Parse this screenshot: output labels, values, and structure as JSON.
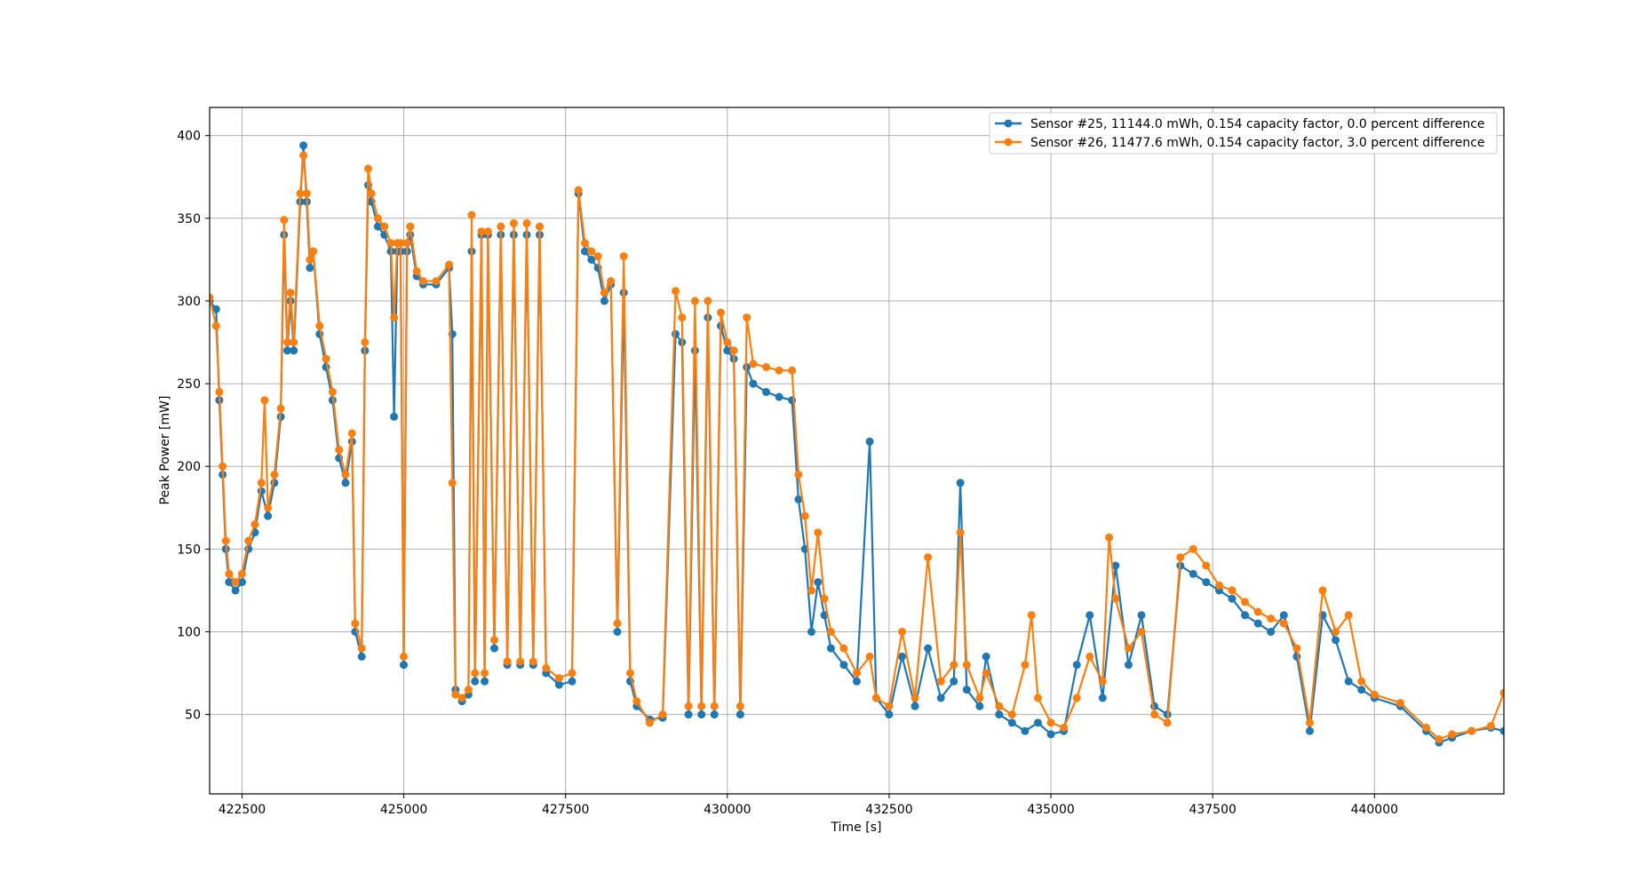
{
  "chart_data": {
    "type": "line",
    "title": "",
    "xlabel": "Time [s]",
    "ylabel": "Peak Power [mW]",
    "xlim": [
      422000,
      442000
    ],
    "ylim": [
      2,
      417
    ],
    "x_ticks": [
      422500,
      425000,
      427500,
      430000,
      432500,
      435000,
      437500,
      440000
    ],
    "y_ticks": [
      50,
      100,
      150,
      200,
      250,
      300,
      350,
      400
    ],
    "grid": true,
    "legend_position": "top-right",
    "markers": "circle",
    "series": [
      {
        "name": "Sensor #25, 11144.0 mWh,  0.154 capacity factor, 0.0 percent difference",
        "color": "#1f77b4",
        "points": [
          [
            422000,
            300
          ],
          [
            422100,
            295
          ],
          [
            422150,
            240
          ],
          [
            422200,
            195
          ],
          [
            422250,
            150
          ],
          [
            422300,
            130
          ],
          [
            422400,
            125
          ],
          [
            422500,
            130
          ],
          [
            422600,
            150
          ],
          [
            422700,
            160
          ],
          [
            422800,
            185
          ],
          [
            422900,
            170
          ],
          [
            423000,
            190
          ],
          [
            423100,
            230
          ],
          [
            423150,
            340
          ],
          [
            423200,
            270
          ],
          [
            423250,
            300
          ],
          [
            423300,
            270
          ],
          [
            423400,
            360
          ],
          [
            423450,
            394
          ],
          [
            423500,
            360
          ],
          [
            423550,
            320
          ],
          [
            423600,
            330
          ],
          [
            423700,
            280
          ],
          [
            423800,
            260
          ],
          [
            423900,
            240
          ],
          [
            424000,
            205
          ],
          [
            424100,
            190
          ],
          [
            424200,
            215
          ],
          [
            424250,
            100
          ],
          [
            424350,
            85
          ],
          [
            424400,
            270
          ],
          [
            424450,
            370
          ],
          [
            424500,
            360
          ],
          [
            424600,
            345
          ],
          [
            424700,
            340
          ],
          [
            424800,
            330
          ],
          [
            424850,
            230
          ],
          [
            424900,
            330
          ],
          [
            424950,
            330
          ],
          [
            425000,
            80
          ],
          [
            425050,
            330
          ],
          [
            425100,
            340
          ],
          [
            425200,
            315
          ],
          [
            425300,
            310
          ],
          [
            425500,
            310
          ],
          [
            425700,
            320
          ],
          [
            425750,
            280
          ],
          [
            425800,
            65
          ],
          [
            425900,
            58
          ],
          [
            426000,
            62
          ],
          [
            426050,
            330
          ],
          [
            426100,
            70
          ],
          [
            426200,
            340
          ],
          [
            426250,
            70
          ],
          [
            426300,
            340
          ],
          [
            426400,
            90
          ],
          [
            426500,
            340
          ],
          [
            426600,
            80
          ],
          [
            426700,
            340
          ],
          [
            426800,
            80
          ],
          [
            426900,
            340
          ],
          [
            427000,
            80
          ],
          [
            427100,
            340
          ],
          [
            427200,
            75
          ],
          [
            427400,
            68
          ],
          [
            427600,
            70
          ],
          [
            427700,
            365
          ],
          [
            427800,
            330
          ],
          [
            427900,
            325
          ],
          [
            428000,
            320
          ],
          [
            428100,
            300
          ],
          [
            428200,
            310
          ],
          [
            428300,
            100
          ],
          [
            428400,
            305
          ],
          [
            428500,
            70
          ],
          [
            428600,
            55
          ],
          [
            428800,
            47
          ],
          [
            429000,
            48
          ],
          [
            429200,
            280
          ],
          [
            429300,
            275
          ],
          [
            429400,
            50
          ],
          [
            429500,
            270
          ],
          [
            429600,
            50
          ],
          [
            429700,
            290
          ],
          [
            429800,
            50
          ],
          [
            429900,
            285
          ],
          [
            430000,
            270
          ],
          [
            430100,
            265
          ],
          [
            430200,
            50
          ],
          [
            430300,
            260
          ],
          [
            430400,
            250
          ],
          [
            430600,
            245
          ],
          [
            430800,
            242
          ],
          [
            431000,
            240
          ],
          [
            431100,
            180
          ],
          [
            431200,
            150
          ],
          [
            431300,
            100
          ],
          [
            431400,
            130
          ],
          [
            431500,
            110
          ],
          [
            431600,
            90
          ],
          [
            431800,
            80
          ],
          [
            432000,
            70
          ],
          [
            432200,
            215
          ],
          [
            432300,
            60
          ],
          [
            432500,
            50
          ],
          [
            432700,
            85
          ],
          [
            432900,
            55
          ],
          [
            433100,
            90
          ],
          [
            433300,
            60
          ],
          [
            433500,
            70
          ],
          [
            433600,
            190
          ],
          [
            433700,
            65
          ],
          [
            433900,
            55
          ],
          [
            434000,
            85
          ],
          [
            434200,
            50
          ],
          [
            434400,
            45
          ],
          [
            434600,
            40
          ],
          [
            434800,
            45
          ],
          [
            435000,
            38
          ],
          [
            435200,
            40
          ],
          [
            435400,
            80
          ],
          [
            435600,
            110
          ],
          [
            435800,
            60
          ],
          [
            436000,
            140
          ],
          [
            436200,
            80
          ],
          [
            436400,
            110
          ],
          [
            436600,
            55
          ],
          [
            436800,
            50
          ],
          [
            437000,
            140
          ],
          [
            437200,
            135
          ],
          [
            437400,
            130
          ],
          [
            437600,
            125
          ],
          [
            437800,
            120
          ],
          [
            438000,
            110
          ],
          [
            438200,
            105
          ],
          [
            438400,
            100
          ],
          [
            438600,
            110
          ],
          [
            438800,
            85
          ],
          [
            439000,
            40
          ],
          [
            439200,
            110
          ],
          [
            439400,
            95
          ],
          [
            439600,
            70
          ],
          [
            439800,
            65
          ],
          [
            440000,
            60
          ],
          [
            440400,
            55
          ],
          [
            440800,
            40
          ],
          [
            441000,
            33
          ],
          [
            441200,
            36
          ],
          [
            441500,
            40
          ],
          [
            441800,
            42
          ],
          [
            442000,
            40
          ]
        ]
      },
      {
        "name": "Sensor #26, 11477.6 mWh,  0.154 capacity factor, 3.0 percent difference",
        "color": "#ff7f0e",
        "points": [
          [
            422000,
            302
          ],
          [
            422100,
            285
          ],
          [
            422150,
            245
          ],
          [
            422200,
            200
          ],
          [
            422250,
            155
          ],
          [
            422300,
            135
          ],
          [
            422400,
            130
          ],
          [
            422500,
            135
          ],
          [
            422600,
            155
          ],
          [
            422700,
            165
          ],
          [
            422800,
            190
          ],
          [
            422850,
            240
          ],
          [
            422900,
            175
          ],
          [
            423000,
            195
          ],
          [
            423100,
            235
          ],
          [
            423150,
            349
          ],
          [
            423200,
            275
          ],
          [
            423250,
            305
          ],
          [
            423300,
            275
          ],
          [
            423400,
            365
          ],
          [
            423450,
            388
          ],
          [
            423500,
            365
          ],
          [
            423550,
            325
          ],
          [
            423600,
            330
          ],
          [
            423700,
            285
          ],
          [
            423800,
            265
          ],
          [
            423900,
            245
          ],
          [
            424000,
            210
          ],
          [
            424100,
            195
          ],
          [
            424200,
            220
          ],
          [
            424250,
            105
          ],
          [
            424350,
            90
          ],
          [
            424400,
            275
          ],
          [
            424450,
            380
          ],
          [
            424500,
            365
          ],
          [
            424600,
            350
          ],
          [
            424700,
            345
          ],
          [
            424800,
            335
          ],
          [
            424850,
            290
          ],
          [
            424900,
            335
          ],
          [
            424950,
            335
          ],
          [
            425000,
            85
          ],
          [
            425050,
            335
          ],
          [
            425100,
            345
          ],
          [
            425200,
            318
          ],
          [
            425300,
            312
          ],
          [
            425500,
            312
          ],
          [
            425700,
            322
          ],
          [
            425750,
            190
          ],
          [
            425800,
            62
          ],
          [
            425900,
            60
          ],
          [
            426000,
            65
          ],
          [
            426050,
            352
          ],
          [
            426100,
            75
          ],
          [
            426200,
            342
          ],
          [
            426250,
            75
          ],
          [
            426300,
            342
          ],
          [
            426400,
            95
          ],
          [
            426500,
            345
          ],
          [
            426600,
            82
          ],
          [
            426700,
            347
          ],
          [
            426800,
            82
          ],
          [
            426900,
            347
          ],
          [
            427000,
            82
          ],
          [
            427100,
            345
          ],
          [
            427200,
            78
          ],
          [
            427400,
            72
          ],
          [
            427600,
            75
          ],
          [
            427700,
            367
          ],
          [
            427800,
            335
          ],
          [
            427900,
            330
          ],
          [
            428000,
            327
          ],
          [
            428100,
            305
          ],
          [
            428200,
            312
          ],
          [
            428300,
            105
          ],
          [
            428400,
            327
          ],
          [
            428500,
            75
          ],
          [
            428600,
            58
          ],
          [
            428800,
            45
          ],
          [
            429000,
            50
          ],
          [
            429200,
            306
          ],
          [
            429300,
            290
          ],
          [
            429400,
            55
          ],
          [
            429500,
            300
          ],
          [
            429600,
            55
          ],
          [
            429700,
            300
          ],
          [
            429800,
            55
          ],
          [
            429900,
            293
          ],
          [
            430000,
            275
          ],
          [
            430100,
            270
          ],
          [
            430200,
            55
          ],
          [
            430300,
            290
          ],
          [
            430400,
            262
          ],
          [
            430600,
            260
          ],
          [
            430800,
            258
          ],
          [
            431000,
            258
          ],
          [
            431100,
            195
          ],
          [
            431200,
            170
          ],
          [
            431300,
            125
          ],
          [
            431400,
            160
          ],
          [
            431500,
            120
          ],
          [
            431600,
            100
          ],
          [
            431800,
            90
          ],
          [
            432000,
            75
          ],
          [
            432200,
            85
          ],
          [
            432300,
            60
          ],
          [
            432500,
            55
          ],
          [
            432700,
            100
          ],
          [
            432900,
            60
          ],
          [
            433100,
            145
          ],
          [
            433300,
            70
          ],
          [
            433500,
            80
          ],
          [
            433600,
            160
          ],
          [
            433700,
            80
          ],
          [
            433900,
            60
          ],
          [
            434000,
            75
          ],
          [
            434200,
            55
          ],
          [
            434400,
            50
          ],
          [
            434600,
            80
          ],
          [
            434700,
            110
          ],
          [
            434800,
            60
          ],
          [
            435000,
            45
          ],
          [
            435200,
            42
          ],
          [
            435400,
            60
          ],
          [
            435600,
            85
          ],
          [
            435800,
            70
          ],
          [
            435900,
            157
          ],
          [
            436000,
            120
          ],
          [
            436200,
            90
          ],
          [
            436400,
            100
          ],
          [
            436600,
            50
          ],
          [
            436800,
            45
          ],
          [
            437000,
            145
          ],
          [
            437200,
            150
          ],
          [
            437400,
            140
          ],
          [
            437600,
            128
          ],
          [
            437800,
            125
          ],
          [
            438000,
            118
          ],
          [
            438200,
            112
          ],
          [
            438400,
            108
          ],
          [
            438600,
            105
          ],
          [
            438800,
            90
          ],
          [
            439000,
            45
          ],
          [
            439200,
            125
          ],
          [
            439400,
            100
          ],
          [
            439600,
            110
          ],
          [
            439800,
            70
          ],
          [
            440000,
            62
          ],
          [
            440400,
            57
          ],
          [
            440800,
            42
          ],
          [
            441000,
            35
          ],
          [
            441200,
            38
          ],
          [
            441500,
            40
          ],
          [
            441800,
            43
          ],
          [
            442000,
            63
          ]
        ]
      }
    ]
  }
}
